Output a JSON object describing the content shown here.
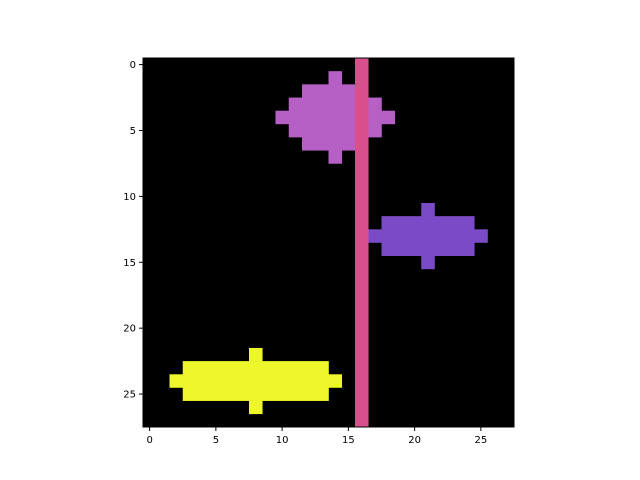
{
  "chart_data": {
    "type": "heatmap",
    "rows": 28,
    "cols": 28,
    "background": "#000000",
    "x_ticks": [
      0,
      5,
      10,
      15,
      20,
      25
    ],
    "y_ticks": [
      0,
      5,
      10,
      15,
      20,
      25
    ],
    "xlim": [
      -0.5,
      27.5
    ],
    "ylim": [
      27.5,
      -0.5
    ],
    "grid": false,
    "shapes": [
      {
        "name": "magenta-cross",
        "color": "#b660c6",
        "cells": [
          {
            "row": 1,
            "cols": [
              14,
              14
            ]
          },
          {
            "row": 2,
            "cols": [
              12,
              15
            ]
          },
          {
            "row": 3,
            "cols": [
              11,
              17
            ]
          },
          {
            "row": 4,
            "cols": [
              10,
              18
            ]
          },
          {
            "row": 5,
            "cols": [
              11,
              17
            ]
          },
          {
            "row": 6,
            "cols": [
              12,
              15
            ]
          },
          {
            "row": 7,
            "cols": [
              14,
              14
            ]
          }
        ]
      },
      {
        "name": "purple-cross",
        "color": "#7b4bc7",
        "cells": [
          {
            "row": 11,
            "cols": [
              21,
              21
            ]
          },
          {
            "row": 12,
            "cols": [
              18,
              24
            ]
          },
          {
            "row": 13,
            "cols": [
              17,
              25
            ]
          },
          {
            "row": 14,
            "cols": [
              18,
              24
            ]
          },
          {
            "row": 15,
            "cols": [
              21,
              21
            ]
          }
        ]
      },
      {
        "name": "yellow-cross",
        "color": "#eef72b",
        "cells": [
          {
            "row": 22,
            "cols": [
              8,
              8
            ]
          },
          {
            "row": 23,
            "cols": [
              3,
              13
            ]
          },
          {
            "row": 24,
            "cols": [
              2,
              14
            ]
          },
          {
            "row": 25,
            "cols": [
              3,
              13
            ]
          },
          {
            "row": 26,
            "cols": [
              8,
              8
            ]
          }
        ]
      },
      {
        "name": "pink-bar",
        "color": "#d94f8c",
        "cells": [
          {
            "row": 0,
            "cols": [
              16,
              16
            ]
          },
          {
            "row": 1,
            "cols": [
              16,
              16
            ]
          },
          {
            "row": 2,
            "cols": [
              16,
              16
            ]
          },
          {
            "row": 3,
            "cols": [
              16,
              16
            ]
          },
          {
            "row": 4,
            "cols": [
              16,
              16
            ]
          },
          {
            "row": 5,
            "cols": [
              16,
              16
            ]
          },
          {
            "row": 6,
            "cols": [
              16,
              16
            ]
          },
          {
            "row": 7,
            "cols": [
              16,
              16
            ]
          },
          {
            "row": 8,
            "cols": [
              16,
              16
            ]
          },
          {
            "row": 9,
            "cols": [
              16,
              16
            ]
          },
          {
            "row": 10,
            "cols": [
              16,
              16
            ]
          },
          {
            "row": 11,
            "cols": [
              16,
              16
            ]
          },
          {
            "row": 12,
            "cols": [
              16,
              16
            ]
          },
          {
            "row": 13,
            "cols": [
              16,
              16
            ]
          },
          {
            "row": 14,
            "cols": [
              16,
              16
            ]
          },
          {
            "row": 15,
            "cols": [
              16,
              16
            ]
          },
          {
            "row": 16,
            "cols": [
              16,
              16
            ]
          },
          {
            "row": 17,
            "cols": [
              16,
              16
            ]
          },
          {
            "row": 18,
            "cols": [
              16,
              16
            ]
          },
          {
            "row": 19,
            "cols": [
              16,
              16
            ]
          },
          {
            "row": 20,
            "cols": [
              16,
              16
            ]
          },
          {
            "row": 21,
            "cols": [
              16,
              16
            ]
          },
          {
            "row": 22,
            "cols": [
              16,
              16
            ]
          },
          {
            "row": 23,
            "cols": [
              16,
              16
            ]
          },
          {
            "row": 24,
            "cols": [
              16,
              16
            ]
          },
          {
            "row": 25,
            "cols": [
              16,
              16
            ]
          },
          {
            "row": 26,
            "cols": [
              16,
              16
            ]
          },
          {
            "row": 27,
            "cols": [
              16,
              16
            ]
          }
        ]
      }
    ]
  }
}
